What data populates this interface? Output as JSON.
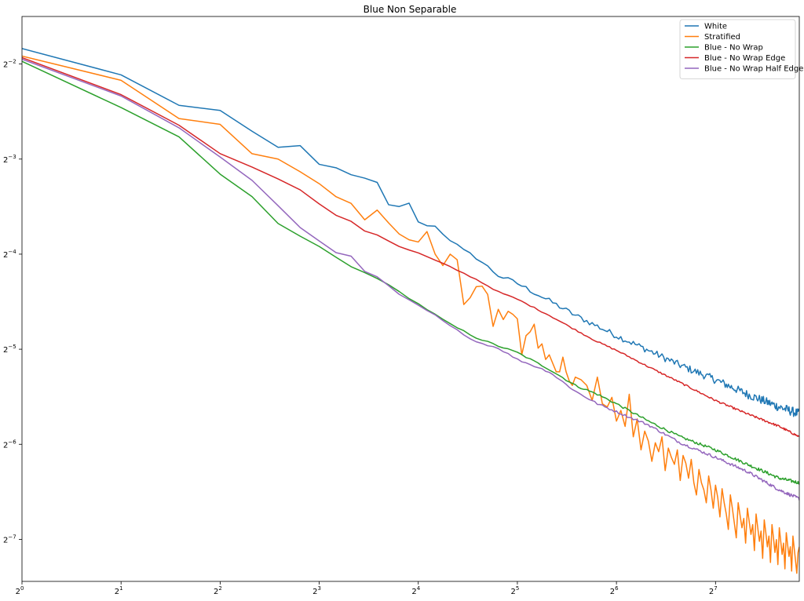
{
  "chart_data": {
    "type": "line",
    "title": "Blue Non Separable",
    "xlabel": "",
    "ylabel": "",
    "x_scale": "log2",
    "y_scale": "log2",
    "xlim": [
      1,
      230
    ],
    "ylim": [
      0.00575,
      0.3536
    ],
    "x_ticks": [
      {
        "value": 1,
        "exp": "0"
      },
      {
        "value": 2,
        "exp": "1"
      },
      {
        "value": 4,
        "exp": "2"
      },
      {
        "value": 8,
        "exp": "3"
      },
      {
        "value": 16,
        "exp": "4"
      },
      {
        "value": 32,
        "exp": "5"
      },
      {
        "value": 64,
        "exp": "6"
      },
      {
        "value": 128,
        "exp": "7"
      }
    ],
    "y_ticks": [
      {
        "value": 0.25,
        "exp": "−2"
      },
      {
        "value": 0.125,
        "exp": "−3"
      },
      {
        "value": 0.0625,
        "exp": "−4"
      },
      {
        "value": 0.03125,
        "exp": "−5"
      },
      {
        "value": 0.015625,
        "exp": "−6"
      },
      {
        "value": 0.0078125,
        "exp": "−7"
      }
    ],
    "tick_base": "2",
    "grid": false,
    "legend_position": "top-right",
    "series": [
      {
        "name": "White",
        "color": "#1f77b4",
        "noise": 0.035,
        "noise_growth": 0.6,
        "points": [
          [
            1,
            0.28
          ],
          [
            2,
            0.231
          ],
          [
            3,
            0.185
          ],
          [
            4,
            0.178
          ],
          [
            6,
            0.136
          ],
          [
            7,
            0.137
          ],
          [
            8,
            0.12
          ],
          [
            9,
            0.117
          ],
          [
            11,
            0.108
          ],
          [
            12,
            0.105
          ],
          [
            13,
            0.089
          ],
          [
            14,
            0.088
          ],
          [
            15,
            0.091
          ],
          [
            16,
            0.0785
          ],
          [
            18,
            0.0765
          ],
          [
            20,
            0.0695
          ],
          [
            22,
            0.064
          ],
          [
            24,
            0.061
          ],
          [
            28,
            0.0535
          ],
          [
            32,
            0.0505
          ],
          [
            40,
            0.0445
          ],
          [
            48,
            0.04
          ],
          [
            64,
            0.0345
          ],
          [
            80,
            0.031
          ],
          [
            100,
            0.0278
          ],
          [
            128,
            0.025
          ],
          [
            160,
            0.0225
          ],
          [
            200,
            0.0205
          ],
          [
            230,
            0.0195
          ]
        ]
      },
      {
        "name": "Stratified",
        "color": "#ff7f0e",
        "noise": 0.0,
        "noise_growth": 0.0,
        "points": [
          [
            1,
            0.265
          ],
          [
            2,
            0.222
          ],
          [
            3,
            0.168
          ],
          [
            4,
            0.161
          ],
          [
            5,
            0.13
          ],
          [
            6,
            0.125
          ],
          [
            7,
            0.114
          ],
          [
            8,
            0.1045
          ],
          [
            9,
            0.095
          ],
          [
            10,
            0.0905
          ],
          [
            11,
            0.0803
          ],
          [
            12,
            0.0862
          ],
          [
            13,
            0.0785
          ],
          [
            14,
            0.0724
          ],
          [
            15,
            0.0694
          ],
          [
            16,
            0.0683
          ],
          [
            17,
            0.0737
          ],
          [
            18,
            0.0625
          ],
          [
            19,
            0.0575
          ],
          [
            20,
            0.0625
          ],
          [
            21,
            0.06
          ],
          [
            22,
            0.0433
          ],
          [
            23,
            0.0455
          ],
          [
            24,
            0.0493
          ],
          [
            25,
            0.0495
          ],
          [
            26,
            0.0466
          ],
          [
            27,
            0.0369
          ],
          [
            28,
            0.0418
          ],
          [
            29,
            0.0388
          ],
          [
            30,
            0.0412
          ],
          [
            31,
            0.0403
          ],
          [
            32,
            0.039
          ],
          [
            33,
            0.03
          ],
          [
            34,
            0.0345
          ],
          [
            35,
            0.0355
          ],
          [
            36,
            0.0375
          ],
          [
            37,
            0.0315
          ],
          [
            38,
            0.0325
          ],
          [
            39,
            0.029
          ],
          [
            40,
            0.03
          ],
          [
            42,
            0.0265
          ],
          [
            43,
            0.0265
          ],
          [
            44,
            0.0295
          ],
          [
            45,
            0.0265
          ],
          [
            46,
            0.0248
          ],
          [
            47,
            0.024
          ],
          [
            48,
            0.0255
          ],
          [
            50,
            0.025
          ],
          [
            52,
            0.024
          ],
          [
            54,
            0.0215
          ],
          [
            56,
            0.0255
          ],
          [
            58,
            0.021
          ],
          [
            60,
            0.0205
          ],
          [
            62,
            0.022
          ],
          [
            64,
            0.0185
          ],
          [
            66,
            0.02
          ],
          [
            68,
            0.0178
          ],
          [
            70,
            0.0225
          ],
          [
            72,
            0.0165
          ],
          [
            74,
            0.0188
          ],
          [
            76,
            0.015
          ],
          [
            78,
            0.0172
          ],
          [
            80,
            0.016
          ],
          [
            82,
            0.0138
          ],
          [
            84,
            0.0158
          ],
          [
            86,
            0.0148
          ],
          [
            88,
            0.0165
          ],
          [
            90,
            0.0129
          ],
          [
            92,
            0.0152
          ],
          [
            94,
            0.0142
          ],
          [
            96,
            0.0135
          ],
          [
            98,
            0.015
          ],
          [
            100,
            0.012
          ],
          [
            102,
            0.0144
          ],
          [
            104,
            0.0136
          ],
          [
            106,
            0.0122
          ],
          [
            108,
            0.014
          ],
          [
            110,
            0.0118
          ],
          [
            112,
            0.0108
          ],
          [
            114,
            0.013
          ],
          [
            116,
            0.0118
          ],
          [
            118,
            0.0112
          ],
          [
            120,
            0.0102
          ],
          [
            122,
            0.0124
          ],
          [
            124,
            0.0112
          ],
          [
            126,
            0.0098
          ],
          [
            128,
            0.0116
          ],
          [
            130,
            0.0106
          ],
          [
            132,
            0.0092
          ],
          [
            134,
            0.0113
          ],
          [
            136,
            0.0102
          ],
          [
            138,
            0.0094
          ],
          [
            140,
            0.0084
          ],
          [
            142,
            0.0108
          ],
          [
            144,
            0.0098
          ],
          [
            146,
            0.0088
          ],
          [
            148,
            0.0079
          ],
          [
            150,
            0.0102
          ],
          [
            152,
            0.0093
          ],
          [
            154,
            0.0085
          ],
          [
            156,
            0.0091
          ],
          [
            158,
            0.0076
          ],
          [
            160,
            0.0098
          ],
          [
            162,
            0.0089
          ],
          [
            164,
            0.0081
          ],
          [
            166,
            0.0087
          ],
          [
            168,
            0.0072
          ],
          [
            170,
            0.0094
          ],
          [
            172,
            0.0085
          ],
          [
            174,
            0.0077
          ],
          [
            176,
            0.0083
          ],
          [
            178,
            0.0068
          ],
          [
            180,
            0.009
          ],
          [
            182,
            0.0082
          ],
          [
            184,
            0.0074
          ],
          [
            186,
            0.008
          ],
          [
            188,
            0.0066
          ],
          [
            190,
            0.0087
          ],
          [
            192,
            0.0079
          ],
          [
            194,
            0.0071
          ],
          [
            196,
            0.0078
          ],
          [
            198,
            0.0065
          ],
          [
            200,
            0.0085
          ],
          [
            202,
            0.0077
          ],
          [
            204,
            0.007
          ],
          [
            206,
            0.0076
          ],
          [
            208,
            0.0063
          ],
          [
            210,
            0.0082
          ],
          [
            212,
            0.0075
          ],
          [
            214,
            0.0069
          ],
          [
            216,
            0.0074
          ],
          [
            218,
            0.0062
          ],
          [
            220,
            0.008
          ],
          [
            222,
            0.0073
          ],
          [
            224,
            0.0067
          ],
          [
            226,
            0.0061
          ],
          [
            228,
            0.0071
          ],
          [
            230,
            0.0074
          ]
        ]
      },
      {
        "name": "Blue - No Wrap",
        "color": "#2ca02c",
        "noise": 0.012,
        "noise_growth": 0.5,
        "points": [
          [
            1,
            0.255
          ],
          [
            2,
            0.182
          ],
          [
            3,
            0.147
          ],
          [
            4,
            0.112
          ],
          [
            5,
            0.095
          ],
          [
            6,
            0.078
          ],
          [
            8,
            0.066
          ],
          [
            10,
            0.057
          ],
          [
            12,
            0.0525
          ],
          [
            14,
            0.0475
          ],
          [
            16,
            0.0435
          ],
          [
            20,
            0.0375
          ],
          [
            24,
            0.034
          ],
          [
            28,
            0.032
          ],
          [
            32,
            0.0305
          ],
          [
            40,
            0.027
          ],
          [
            48,
            0.024
          ],
          [
            56,
            0.0225
          ],
          [
            64,
            0.021
          ],
          [
            80,
            0.0185
          ],
          [
            100,
            0.0165
          ],
          [
            128,
            0.015
          ],
          [
            160,
            0.0135
          ],
          [
            200,
            0.0122
          ],
          [
            230,
            0.0118
          ]
        ]
      },
      {
        "name": "Blue - No Wrap Edge",
        "color": "#d62728",
        "noise": 0.008,
        "noise_growth": 0.5,
        "points": [
          [
            1,
            0.262
          ],
          [
            2,
            0.2
          ],
          [
            3,
            0.16
          ],
          [
            4,
            0.13
          ],
          [
            5,
            0.118
          ],
          [
            6,
            0.108
          ],
          [
            7,
            0.1
          ],
          [
            8,
            0.09
          ],
          [
            9,
            0.083
          ],
          [
            10,
            0.0795
          ],
          [
            11,
            0.074
          ],
          [
            12,
            0.072
          ],
          [
            14,
            0.066
          ],
          [
            16,
            0.063
          ],
          [
            20,
            0.057
          ],
          [
            24,
            0.052
          ],
          [
            28,
            0.0475
          ],
          [
            32,
            0.045
          ],
          [
            40,
            0.04
          ],
          [
            48,
            0.036
          ],
          [
            56,
            0.033
          ],
          [
            64,
            0.031
          ],
          [
            80,
            0.0275
          ],
          [
            100,
            0.0245
          ],
          [
            128,
            0.0215
          ],
          [
            160,
            0.0195
          ],
          [
            200,
            0.0178
          ],
          [
            230,
            0.0165
          ]
        ]
      },
      {
        "name": "Blue - No Wrap Half Edge",
        "color": "#9467bd",
        "noise": 0.012,
        "noise_growth": 0.5,
        "points": [
          [
            1,
            0.259
          ],
          [
            2,
            0.198
          ],
          [
            3,
            0.157
          ],
          [
            4,
            0.127
          ],
          [
            5,
            0.107
          ],
          [
            6,
            0.089
          ],
          [
            7,
            0.076
          ],
          [
            8,
            0.069
          ],
          [
            9,
            0.063
          ],
          [
            10,
            0.0615
          ],
          [
            11,
            0.055
          ],
          [
            12,
            0.053
          ],
          [
            13,
            0.0495
          ],
          [
            14,
            0.0465
          ],
          [
            16,
            0.043
          ],
          [
            18,
            0.04
          ],
          [
            20,
            0.037
          ],
          [
            24,
            0.033
          ],
          [
            28,
            0.0315
          ],
          [
            32,
            0.029
          ],
          [
            40,
            0.0265
          ],
          [
            48,
            0.023
          ],
          [
            56,
            0.021
          ],
          [
            64,
            0.0198
          ],
          [
            80,
            0.018
          ],
          [
            100,
            0.0158
          ],
          [
            128,
            0.0142
          ],
          [
            160,
            0.0128
          ],
          [
            200,
            0.0112
          ],
          [
            230,
            0.0105
          ]
        ]
      }
    ]
  }
}
